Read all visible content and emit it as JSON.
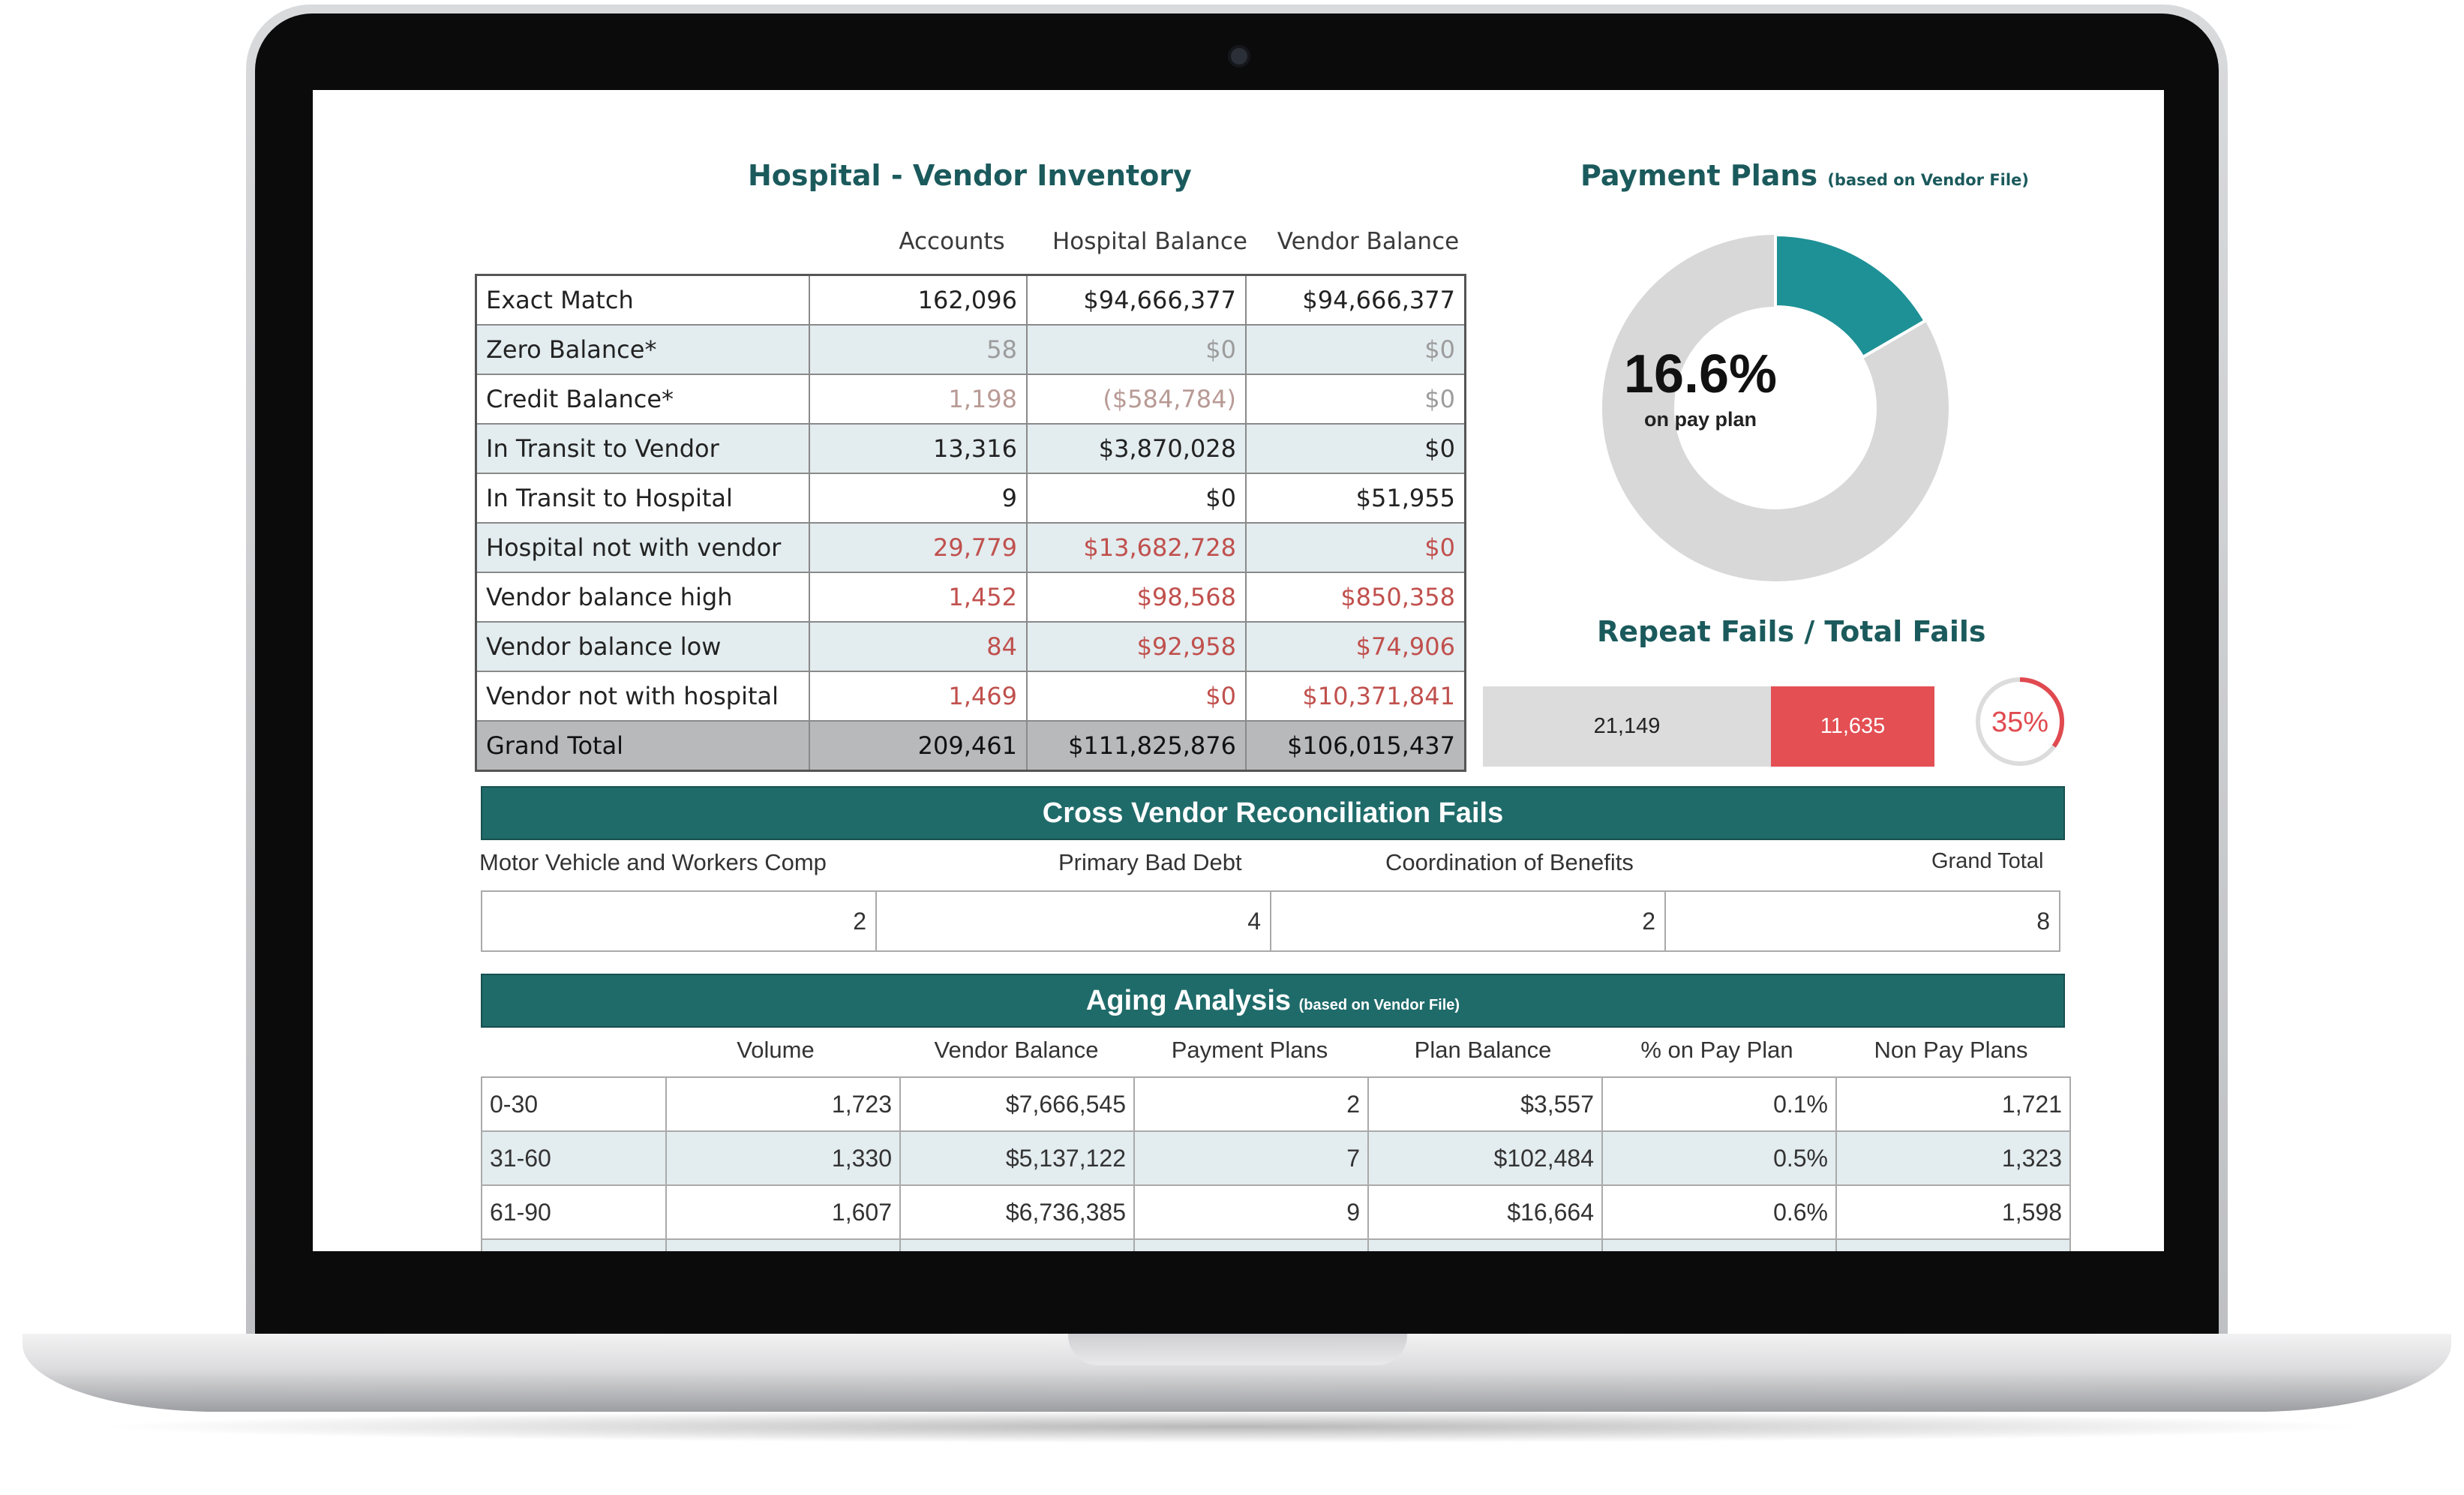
{
  "inventory": {
    "title": "Hospital - Vendor Inventory",
    "columns": [
      "Accounts",
      "Hospital Balance",
      "Vendor Balance"
    ],
    "rows": [
      {
        "label": "Exact Match",
        "accounts": "162,096",
        "hospital_balance": "$94,666,377",
        "vendor_balance": "$94,666,377"
      },
      {
        "label": "Zero Balance*",
        "accounts": "58",
        "hospital_balance": "$0",
        "vendor_balance": "$0"
      },
      {
        "label": "Credit Balance*",
        "accounts": "1,198",
        "hospital_balance": "($584,784)",
        "vendor_balance": "$0"
      },
      {
        "label": "In Transit to Vendor",
        "accounts": "13,316",
        "hospital_balance": "$3,870,028",
        "vendor_balance": "$0"
      },
      {
        "label": "In Transit to Hospital",
        "accounts": "9",
        "hospital_balance": "$0",
        "vendor_balance": "$51,955"
      },
      {
        "label": "Hospital not with vendor",
        "accounts": "29,779",
        "hospital_balance": "$13,682,728",
        "vendor_balance": "$0"
      },
      {
        "label": "Vendor balance high",
        "accounts": "1,452",
        "hospital_balance": "$98,568",
        "vendor_balance": "$850,358"
      },
      {
        "label": "Vendor balance low",
        "accounts": "84",
        "hospital_balance": "$92,958",
        "vendor_balance": "$74,906"
      },
      {
        "label": "Vendor not with hospital",
        "accounts": "1,469",
        "hospital_balance": "$0",
        "vendor_balance": "$10,371,841"
      },
      {
        "label": "Grand Total",
        "accounts": "209,461",
        "hospital_balance": "$111,825,876",
        "vendor_balance": "$106,015,437"
      }
    ],
    "colors": {
      "teal": "#1f6b6a",
      "red_text": "#c0504d",
      "muted_text": "#9c9c9c",
      "alt_row": "#e3ecef",
      "total_row": "#b8b9bb"
    }
  },
  "payment_plans": {
    "title": "Payment Plans",
    "title_note": "(based on Vendor File)",
    "percent_label": "16.6%",
    "caption": "on pay plan",
    "fraction": 0.166,
    "colors": {
      "filled": "#1e9196",
      "rest": "#d8d8d9"
    }
  },
  "repeat_fails": {
    "title": "Repeat Fails / Total Fails",
    "non_repeat": "21,149",
    "repeat": "11,635",
    "percent_label": "35%",
    "fraction": 0.35,
    "colors": {
      "bar": "#dcdcdd",
      "repeat": "#e34f53"
    }
  },
  "cross_vendor": {
    "title": "Cross Vendor Reconciliation Fails",
    "columns": [
      "Motor Vehicle and Workers Comp",
      "Primary Bad Debt",
      "Coordination of Benefits",
      "Grand Total"
    ],
    "values": [
      "2",
      "4",
      "2",
      "8"
    ]
  },
  "aging": {
    "title": "Aging Analysis",
    "title_note": "(based on Vendor File)",
    "columns": [
      "Volume",
      "Vendor Balance",
      "Payment Plans",
      "Plan Balance",
      "% on Pay Plan",
      "Non Pay Plans"
    ],
    "rows": [
      {
        "label": "0-30",
        "values": [
          "1,723",
          "$7,666,545",
          "2",
          "$3,557",
          "0.1%",
          "1,721"
        ]
      },
      {
        "label": "31-60",
        "values": [
          "1,330",
          "$5,137,122",
          "7",
          "$102,484",
          "0.5%",
          "1,323"
        ]
      },
      {
        "label": "61-90",
        "values": [
          "1,607",
          "$6,736,385",
          "9",
          "$16,664",
          "0.6%",
          "1,598"
        ]
      }
    ]
  }
}
